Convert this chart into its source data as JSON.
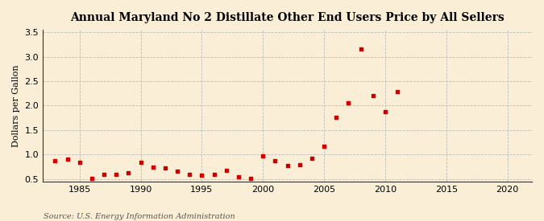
{
  "title": "Annual Maryland No 2 Distillate Other End Users Price by All Sellers",
  "ylabel": "Dollars per Gallon",
  "source": "Source: U.S. Energy Information Administration",
  "background_color": "#faefd6",
  "marker_color": "#cc0000",
  "xlim": [
    1982,
    2022
  ],
  "ylim": [
    0.45,
    3.55
  ],
  "xticks": [
    1985,
    1990,
    1995,
    2000,
    2005,
    2010,
    2015,
    2020
  ],
  "yticks": [
    0.5,
    1.0,
    1.5,
    2.0,
    2.5,
    3.0,
    3.5
  ],
  "data": [
    [
      1983,
      0.87
    ],
    [
      1984,
      0.9
    ],
    [
      1985,
      0.84
    ],
    [
      1986,
      0.52
    ],
    [
      1987,
      0.6
    ],
    [
      1988,
      0.6
    ],
    [
      1989,
      0.63
    ],
    [
      1990,
      0.84
    ],
    [
      1991,
      0.75
    ],
    [
      1992,
      0.72
    ],
    [
      1993,
      0.66
    ],
    [
      1994,
      0.6
    ],
    [
      1995,
      0.58
    ],
    [
      1996,
      0.6
    ],
    [
      1997,
      0.68
    ],
    [
      1998,
      0.55
    ],
    [
      1999,
      0.52
    ],
    [
      2000,
      0.98
    ],
    [
      2001,
      0.87
    ],
    [
      2002,
      0.77
    ],
    [
      2003,
      0.8
    ],
    [
      2004,
      0.93
    ],
    [
      2005,
      1.17
    ],
    [
      2006,
      1.76
    ],
    [
      2007,
      2.06
    ],
    [
      2008,
      3.15
    ],
    [
      2009,
      2.2
    ],
    [
      2010,
      1.87
    ],
    [
      2011,
      2.29
    ]
  ]
}
